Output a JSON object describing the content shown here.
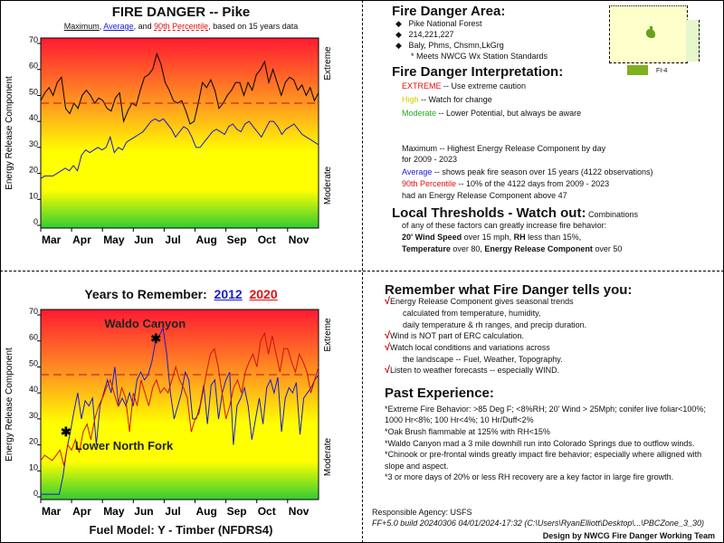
{
  "top_chart": {
    "title": "FIRE DANGER -- Pike",
    "subtitle": {
      "maximum": "Maximum",
      "sep1": ", ",
      "average": "Average",
      "sep2": ", and ",
      "p90": "90th Percentile",
      "rest": ", based on 15 years data"
    }
  },
  "bottom_chart": {
    "title_prefix": "Years to Remember:",
    "year1": "2012",
    "year2": "2020",
    "footer": "Fuel Model: Y - Timber (NFDRS4)"
  },
  "chart_data": [
    {
      "type": "line",
      "title": "FIRE DANGER -- Pike",
      "ylabel": "Energy Release Component",
      "ylim": [
        0,
        70
      ],
      "yticks": [
        0,
        10,
        20,
        30,
        40,
        50,
        60,
        70
      ],
      "xlabel": "",
      "xticks": [
        "Mar",
        "Apr",
        "May",
        "Jun",
        "Jul",
        "Aug",
        "Sep",
        "Oct",
        "Nov"
      ],
      "right_labels": [
        "Extreme",
        "Moderate"
      ],
      "xrange_days": [
        0,
        275
      ],
      "series": [
        {
          "name": "Maximum",
          "color": "#000000",
          "values": [
            48,
            51,
            53,
            50,
            55,
            57,
            45,
            43,
            47,
            45,
            50,
            52,
            50,
            47,
            49,
            48,
            45,
            44,
            49,
            51,
            40,
            44,
            47,
            46,
            52,
            57,
            58,
            60,
            66,
            62,
            55,
            52,
            48,
            47,
            48,
            44,
            39,
            40,
            47,
            55,
            53,
            56,
            52,
            45,
            47,
            50,
            52,
            55,
            55,
            50,
            55,
            52,
            58,
            60,
            63,
            55,
            60,
            55,
            50,
            55,
            57,
            56,
            52,
            54,
            50,
            53,
            48,
            51
          ]
        },
        {
          "name": "Average",
          "color": "#1a1ad0",
          "values": [
            18,
            19,
            19,
            19,
            20,
            21,
            22,
            21,
            23,
            21,
            27,
            29,
            28,
            29,
            30,
            29,
            30,
            34,
            28,
            30,
            29,
            32,
            33,
            34,
            35,
            36,
            38,
            40,
            41,
            40,
            41,
            39,
            37,
            34,
            36,
            38,
            37,
            34,
            30,
            30,
            32,
            34,
            36,
            37,
            36,
            35,
            38,
            39,
            37,
            36,
            39,
            40,
            38,
            36,
            34,
            37,
            40,
            40,
            38,
            35,
            37,
            38,
            39,
            37,
            35,
            34,
            33,
            32,
            31
          ]
        },
        {
          "name": "90th Percentile",
          "color": "#c01010",
          "constant": 47
        }
      ]
    },
    {
      "type": "line",
      "title": "Years to Remember: 2012 2020",
      "ylabel": "Energy Release Component",
      "ylim": [
        0,
        70
      ],
      "yticks": [
        0,
        10,
        20,
        30,
        40,
        50,
        60,
        70
      ],
      "xticks": [
        "Mar",
        "Apr",
        "May",
        "Jun",
        "Jul",
        "Aug",
        "Sep",
        "Oct",
        "Nov"
      ],
      "right_labels": [
        "Extreme",
        "Moderate"
      ],
      "xrange_days": [
        0,
        275
      ],
      "series": [
        {
          "name": "2012",
          "color": "#1a1ad0",
          "values": [
            1,
            1,
            1,
            1,
            1,
            1,
            8,
            18,
            25,
            33,
            40,
            30,
            37,
            35,
            38,
            20,
            35,
            40,
            45,
            40,
            50,
            35,
            38,
            35,
            40,
            35,
            45,
            48,
            45,
            47,
            52,
            60,
            62,
            65,
            55,
            40,
            30,
            35,
            40,
            48,
            45,
            30,
            30,
            35,
            43,
            28,
            43,
            45,
            30,
            40,
            45,
            48,
            20,
            35,
            38,
            42,
            35,
            22,
            30,
            38,
            28,
            42,
            45,
            40,
            46,
            25,
            38,
            42,
            40,
            44,
            24,
            38,
            40,
            42,
            45,
            47
          ]
        },
        {
          "name": "2020",
          "color": "#d01010",
          "values": [
            14,
            16,
            15,
            14,
            16,
            18,
            12,
            20,
            18,
            22,
            17,
            25,
            28,
            22,
            30,
            35,
            38,
            42,
            45,
            40,
            35,
            42,
            38,
            25,
            40,
            35,
            45,
            40,
            35,
            42,
            45,
            40,
            42,
            40,
            45,
            50,
            45,
            42,
            38,
            25,
            30,
            32,
            40,
            48,
            55,
            57,
            50,
            40,
            30,
            35,
            42,
            45,
            40,
            48,
            52,
            55,
            50,
            60,
            63,
            55,
            62,
            55,
            48,
            57,
            57,
            52,
            48,
            55,
            52,
            48,
            40,
            45,
            50
          ]
        },
        {
          "name": "90th Percentile",
          "color": "#c01010",
          "constant": 47
        }
      ],
      "annotations": [
        {
          "text": "Waldo Canyon",
          "day": 114,
          "value": 61
        },
        {
          "text": "Lower North Fork",
          "day": 25,
          "value": 25
        }
      ]
    }
  ],
  "area": {
    "heading": "Fire Danger Area:",
    "bullets": [
      "Pike National Forest",
      "214,221,227",
      "Baly, Phms, Chsmn,LkGrg"
    ],
    "note": "* Meets NWCG Wx Station Standards",
    "map_legend": "FI-4"
  },
  "interpretation": {
    "heading": "Fire Danger Interpretation:",
    "extreme": "EXTREME",
    "extreme_text": " -- Use extreme caution",
    "high": "High",
    "high_text": " -- Watch for change",
    "moderate": "Moderate",
    "moderate_text": " -- Lower Potential, but always be aware",
    "max_line1": "Maximum  -- Highest Energy Release Component by day",
    "max_line2": "for 2009 - 2023",
    "avg": "Average",
    "avg_text": " -- shows peak fire season over 15 years (4122 observations)",
    "p90": "90th Percentile",
    "p90_text": "  -- 10% of the 4122 days from 2009 - 2023",
    "p90_line2": "had an Energy Release Component above 47"
  },
  "thresholds": {
    "heading": "Local Thresholds - Watch out:",
    "intro": "  Combinations",
    "line1": "of any of these factors can greatly increase fire behavior:",
    "wind_b": "20' Wind Speed",
    "wind_t": " over 15 mph, ",
    "rh_b": "RH",
    "rh_t": "  less than 15%,",
    "temp_b": "Temperature",
    "temp_t": " over 80, ",
    "erc_b": "Energy Release Component",
    "erc_t": " over 50"
  },
  "remember": {
    "heading": "Remember what Fire Danger tells you:",
    "check": "√",
    "items": [
      {
        "line": "Energy Release Component gives seasonal trends",
        "sub": [
          "calculated from temperature, humidity,",
          "daily temperature & rh ranges, and precip duration."
        ]
      },
      {
        "line": "Wind is NOT part of ERC calculation.",
        "sub": []
      },
      {
        "line": "Watch local conditions and variations across",
        "sub": [
          "the landscape -- Fuel, Weather, Topography."
        ]
      },
      {
        "line": "Listen to weather forecasts -- especially WIND.",
        "sub": []
      }
    ]
  },
  "past": {
    "heading": "Past Experience:",
    "lines": [
      "*Extreme Fire Behavior: >85 Deg F; <8%RH; 20' Wind > 25Mph; conifer live foliar<100%;",
      "1000 Hr<8%; 100 Hr<4%; 10 Hr/Duff<2%",
      "*Oak Brush flammable at 125% with RH<15%",
      "*Waldo Canyon mad a 3 mile downhill run into Colorado Springs due to outflow winds.",
      "*Chinook or pre-frontal winds greatly impact fire behavior; especially where alligned with",
      "slope and aspect.",
      "*3 or more days of 20% or less RH recovery are a key factor in large fire growth."
    ]
  },
  "footer": {
    "agency": "Responsible Agency: USFS",
    "build": "FF+5.0 build 20240306 04/01/2024-17:32 (C:\\Users\\RyanElliott\\Desktop\\...\\PBCZone_3_30)",
    "design": "Design by NWCG Fire Danger Working Team"
  },
  "colors": {
    "extreme": "#ff1a33",
    "high": "#ffff00",
    "moderate": "#33cc33"
  }
}
